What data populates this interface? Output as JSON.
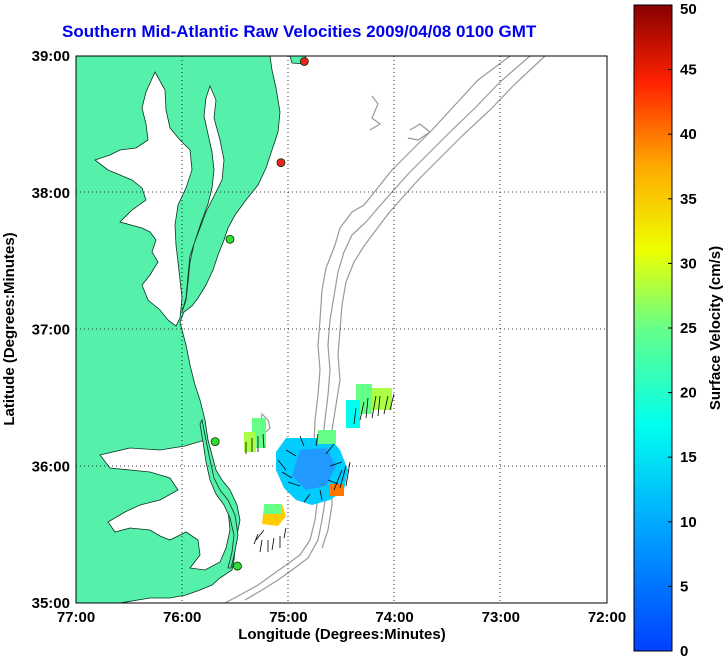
{
  "title": "Southern Mid-Atlantic Raw Velocities 2009/04/08 0100 GMT",
  "colors": {
    "land": "#55f0aa",
    "ocean": "#ffffff",
    "title": "#0000ee",
    "bathymetry": "#999999",
    "station_active": "#33dd33",
    "station_inactive": "#ee2222"
  },
  "map": {
    "x_axis": {
      "label": "Longitude (Degrees:Minutes)",
      "ticks": [
        "77:00",
        "76:00",
        "75:00",
        "74:00",
        "73:00",
        "72:00"
      ],
      "range": [
        -77,
        -72
      ]
    },
    "y_axis": {
      "label": "Latitude (Degrees:Minutes)",
      "ticks": [
        "39:00",
        "38:00",
        "37:00",
        "36:00",
        "35:00"
      ],
      "range": [
        35,
        39
      ]
    },
    "grid": "dotted"
  },
  "colorbar": {
    "label": "Surface Velocity (cm/s)",
    "units": "cm/s",
    "ticks": [
      "0",
      "5",
      "10",
      "15",
      "20",
      "25",
      "30",
      "35",
      "40",
      "45",
      "50"
    ],
    "range": [
      0,
      50
    ],
    "colormap": "jet"
  },
  "stations": [
    {
      "lon": -74.85,
      "lat": 38.96,
      "status": "inactive"
    },
    {
      "lon": -75.07,
      "lat": 38.22,
      "status": "inactive"
    },
    {
      "lon": -75.55,
      "lat": 37.66,
      "status": "active"
    },
    {
      "lon": -75.69,
      "lat": 36.18,
      "status": "active"
    },
    {
      "lon": -75.48,
      "lat": 35.27,
      "status": "active"
    }
  ],
  "velocity_patches": [
    {
      "lon": -75.25,
      "lat": 36.2,
      "speed": 20
    },
    {
      "lon": -74.55,
      "lat": 36.45,
      "speed": 17
    },
    {
      "lon": -74.85,
      "lat": 35.95,
      "speed": 12
    },
    {
      "lon": -74.5,
      "lat": 35.85,
      "speed": 22
    },
    {
      "lon": -75.2,
      "lat": 35.55,
      "speed": 26
    }
  ]
}
